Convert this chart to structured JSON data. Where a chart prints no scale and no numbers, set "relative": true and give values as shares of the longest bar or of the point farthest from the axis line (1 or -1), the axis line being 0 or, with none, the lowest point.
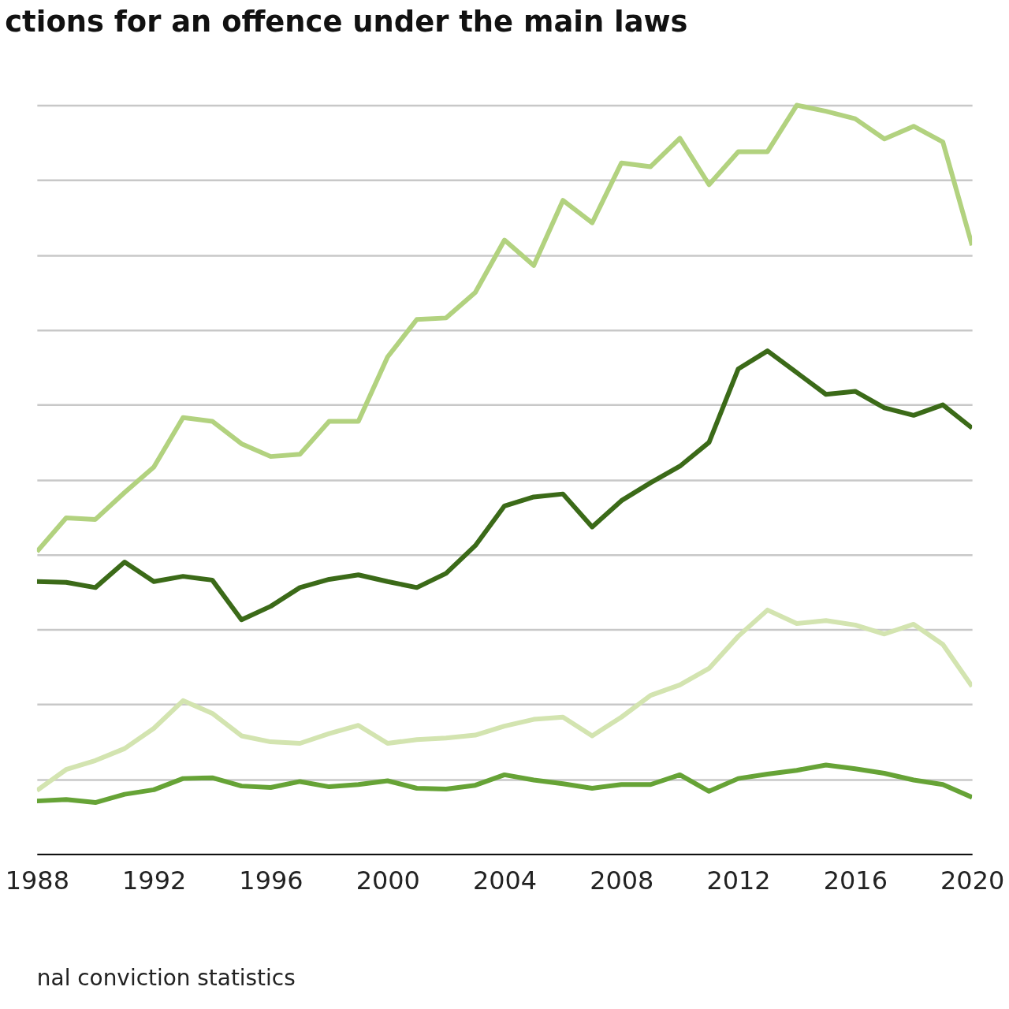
{
  "chart_data": {
    "type": "line",
    "title": "ctions for an offence under the main laws",
    "x": [
      1988,
      1989,
      1990,
      1991,
      1992,
      1993,
      1994,
      1995,
      1996,
      1997,
      1998,
      1999,
      2000,
      2001,
      2002,
      2003,
      2004,
      2005,
      2006,
      2007,
      2008,
      2009,
      2010,
      2011,
      2012,
      2013,
      2014,
      2015,
      2016,
      2017,
      2018,
      2019,
      2020
    ],
    "series": [
      {
        "color": "#b2d27f",
        "values": [
          0.404,
          0.449,
          0.447,
          0.483,
          0.517,
          0.583,
          0.578,
          0.548,
          0.531,
          0.534,
          0.578,
          0.578,
          0.664,
          0.714,
          0.716,
          0.75,
          0.82,
          0.786,
          0.873,
          0.843,
          0.923,
          0.918,
          0.956,
          0.894,
          0.938,
          0.938,
          1,
          0.992,
          0.982,
          0.955,
          0.972,
          0.951,
          0.813
        ]
      },
      {
        "color": "#3b6a18",
        "values": [
          0.364,
          0.363,
          0.356,
          0.39,
          0.364,
          0.371,
          0.366,
          0.313,
          0.331,
          0.356,
          0.367,
          0.373,
          0.364,
          0.356,
          0.375,
          0.412,
          0.465,
          0.477,
          0.481,
          0.437,
          0.472,
          0.496,
          0.518,
          0.55,
          0.648,
          0.672,
          0.643,
          0.614,
          0.618,
          0.596,
          0.586,
          0.6,
          0.569
        ]
      },
      {
        "color": "#d3e4b0",
        "values": [
          0.085,
          0.113,
          0.125,
          0.141,
          0.168,
          0.205,
          0.188,
          0.158,
          0.15,
          0.148,
          0.161,
          0.172,
          0.148,
          0.153,
          0.155,
          0.159,
          0.171,
          0.18,
          0.183,
          0.158,
          0.183,
          0.212,
          0.226,
          0.248,
          0.291,
          0.326,
          0.308,
          0.312,
          0.306,
          0.294,
          0.307,
          0.28,
          0.224
        ]
      },
      {
        "color": "#66a336",
        "values": [
          0.071,
          0.073,
          0.069,
          0.08,
          0.086,
          0.101,
          0.102,
          0.091,
          0.089,
          0.097,
          0.09,
          0.093,
          0.098,
          0.088,
          0.087,
          0.092,
          0.106,
          0.099,
          0.094,
          0.088,
          0.093,
          0.093,
          0.106,
          0.084,
          0.101,
          0.107,
          0.112,
          0.119,
          0.114,
          0.108,
          0.099,
          0.093,
          0.076
        ]
      }
    ],
    "relative": true,
    "xlim": [
      1988,
      2020
    ],
    "xticks": [
      1988,
      1992,
      1996,
      2000,
      2004,
      2008,
      2012,
      2016,
      2020
    ],
    "grid": "y",
    "line_style": "solid",
    "annotations": [
      "nal conviction statistics"
    ]
  }
}
